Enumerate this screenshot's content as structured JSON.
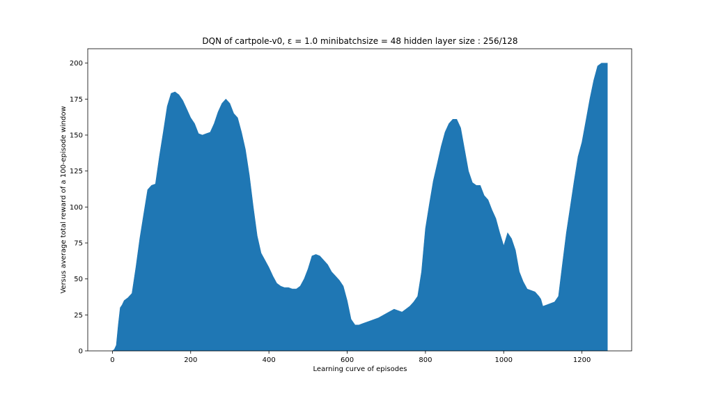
{
  "chart_data": {
    "type": "area",
    "title": "DQN of cartpole-v0, ε = 1.0 minibatchsize = 48 hidden layer size : 256/128",
    "xlabel": "Learning curve of episodes",
    "ylabel": "Versus average total reward of a 100-episode window",
    "xlim": [
      -63,
      1327
    ],
    "ylim": [
      0,
      210
    ],
    "xticks": [
      0,
      200,
      400,
      600,
      800,
      1000,
      1200
    ],
    "yticks": [
      0,
      25,
      50,
      75,
      100,
      125,
      150,
      175,
      200
    ],
    "grid": false,
    "color": "#1f77b4",
    "series": [
      {
        "x": [
          0,
          5,
          10,
          15,
          20,
          25,
          30,
          40,
          50,
          60,
          70,
          80,
          90,
          100,
          110,
          120,
          130,
          140,
          150,
          160,
          170,
          180,
          190,
          200,
          210,
          220,
          230,
          240,
          250,
          260,
          270,
          280,
          290,
          300,
          310,
          320,
          330,
          340,
          350,
          360,
          370,
          380,
          390,
          400,
          410,
          420,
          430,
          440,
          450,
          460,
          470,
          480,
          490,
          500,
          510,
          520,
          530,
          540,
          550,
          560,
          570,
          580,
          590,
          600,
          610,
          620,
          630,
          640,
          660,
          680,
          700,
          720,
          730,
          740,
          750,
          760,
          770,
          780,
          790,
          800,
          810,
          820,
          830,
          840,
          850,
          860,
          870,
          880,
          890,
          900,
          910,
          920,
          930,
          940,
          950,
          960,
          970,
          980,
          990,
          1000,
          1010,
          1020,
          1030,
          1040,
          1050,
          1060,
          1070,
          1080,
          1090,
          1095,
          1100,
          1110,
          1120,
          1130,
          1140,
          1150,
          1160,
          1170,
          1180,
          1190,
          1200,
          1210,
          1220,
          1230,
          1240,
          1250,
          1265
        ],
        "y": [
          0,
          1,
          4,
          18,
          30,
          32,
          35,
          37,
          40,
          58,
          78,
          95,
          112,
          115,
          116,
          135,
          152,
          170,
          179,
          180,
          178,
          174,
          168,
          162,
          158,
          151,
          150,
          151,
          152,
          158,
          166,
          172,
          175,
          172,
          165,
          162,
          152,
          140,
          122,
          100,
          80,
          68,
          63,
          58,
          52,
          47,
          45,
          44,
          44,
          43,
          43,
          45,
          50,
          57,
          66,
          67,
          66,
          63,
          60,
          55,
          52,
          49,
          45,
          35,
          22,
          18,
          18,
          19,
          21,
          23,
          26,
          29,
          28,
          27,
          29,
          31,
          34,
          38,
          55,
          85,
          102,
          118,
          130,
          142,
          152,
          158,
          161,
          161,
          155,
          140,
          125,
          117,
          115,
          115,
          108,
          105,
          98,
          92,
          82,
          73,
          82,
          78,
          70,
          55,
          48,
          43,
          42,
          41,
          38,
          36,
          31,
          32,
          33,
          34,
          38,
          60,
          82,
          100,
          118,
          135,
          145,
          160,
          175,
          188,
          198,
          200,
          200
        ]
      }
    ]
  }
}
